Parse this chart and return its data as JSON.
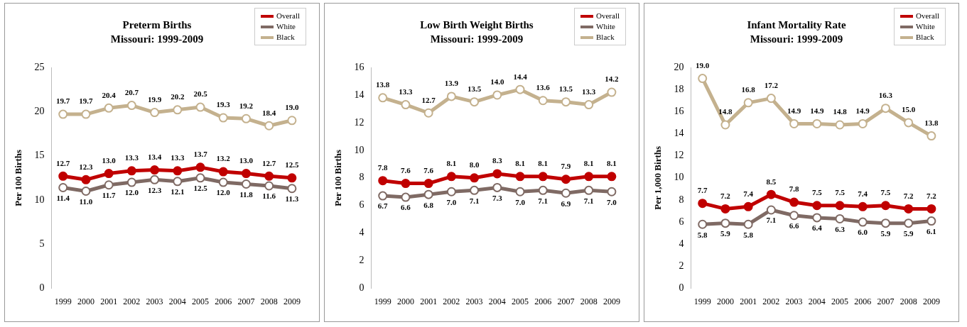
{
  "chart_data": [
    {
      "type": "line",
      "title": "Preterm Births",
      "subtitle": "Missouri: 1999-2009",
      "ylabel": "Per 100 Births",
      "categories": [
        "1999",
        "2000",
        "2001",
        "2002",
        "2003",
        "2004",
        "2005",
        "2006",
        "2007",
        "2008",
        "2009"
      ],
      "ylim": [
        0,
        25
      ],
      "yticks": [
        0,
        5,
        10,
        15,
        20,
        25
      ],
      "grid": false,
      "legend": "top right",
      "marker": "circle",
      "series": [
        {
          "name": "Overall",
          "color": "#c00000",
          "values": [
            12.7,
            12.3,
            13.0,
            13.3,
            13.4,
            13.3,
            13.7,
            13.2,
            13.0,
            12.7,
            12.5
          ],
          "value_labels": [
            "12.7",
            "12.3",
            "13.0",
            "13.3",
            "13.4",
            "13.3",
            "13.7",
            "13.2",
            "13.0",
            "12.7",
            "12.5"
          ]
        },
        {
          "name": "White",
          "color": "#7f6a64",
          "values": [
            11.4,
            11.0,
            11.7,
            12.0,
            12.3,
            12.1,
            12.5,
            12.0,
            11.8,
            11.6,
            11.3
          ],
          "value_labels": [
            "11.4",
            "11.0",
            "11.7",
            "12.0",
            "12.3",
            "12.1",
            "12.5",
            "12.0",
            "11.8",
            "11.6",
            "11.3"
          ]
        },
        {
          "name": "Black",
          "color": "#c4b18e",
          "values": [
            19.7,
            19.7,
            20.4,
            20.7,
            19.9,
            20.2,
            20.5,
            19.3,
            19.2,
            18.4,
            19.0
          ],
          "value_labels": [
            "19.7",
            "19.7",
            "20.4",
            "20.7",
            "19.9",
            "20.2",
            "20.5",
            "19.3",
            "19.2",
            "18.4",
            "19.0"
          ]
        }
      ]
    },
    {
      "type": "line",
      "title": "Low Birth Weight Births",
      "subtitle": "Missouri: 1999-2009",
      "ylabel": "Per 100 Births",
      "categories": [
        "1999",
        "2000",
        "2001",
        "2002",
        "2003",
        "2004",
        "2005",
        "2006",
        "2007",
        "2008",
        "2009"
      ],
      "ylim": [
        0,
        16
      ],
      "yticks": [
        0,
        2,
        4,
        6,
        8,
        10,
        12,
        14,
        16
      ],
      "grid": false,
      "legend": "top right",
      "marker": "circle",
      "series": [
        {
          "name": "Overall",
          "color": "#c00000",
          "values": [
            7.8,
            7.6,
            7.6,
            8.1,
            8.0,
            8.3,
            8.1,
            8.1,
            7.9,
            8.1,
            8.1
          ],
          "value_labels": [
            "7.8",
            "7.6",
            "7.6",
            "8.1",
            "8.0",
            "8.3",
            "8.1",
            "8.1",
            "7.9",
            "8.1",
            "8.1"
          ]
        },
        {
          "name": "White",
          "color": "#7f6a64",
          "values": [
            6.7,
            6.6,
            6.8,
            7.0,
            7.1,
            7.3,
            7.0,
            7.1,
            6.9,
            7.1,
            7.0
          ],
          "value_labels": [
            "6.7",
            "6.6",
            "6.8",
            "7.0",
            "7.1",
            "7.3",
            "7.0",
            "7.1",
            "6.9",
            "7.1",
            "7.0"
          ]
        },
        {
          "name": "Black",
          "color": "#c4b18e",
          "values": [
            13.8,
            13.3,
            12.7,
            13.9,
            13.5,
            14.0,
            14.4,
            13.6,
            13.5,
            13.3,
            14.2
          ],
          "value_labels": [
            "13.8",
            "13.3",
            "12.7",
            "13.9",
            "13.5",
            "14.0",
            "14.4",
            "13.6",
            "13.5",
            "13.3",
            "14.2"
          ]
        }
      ]
    },
    {
      "type": "line",
      "title": "Infant Mortality Rate",
      "subtitle": "Missouri: 1999-2009",
      "ylabel": "Per 1,000 Births",
      "categories": [
        "1999",
        "2000",
        "2001",
        "2002",
        "2003",
        "2004",
        "2005",
        "2006",
        "2007",
        "2008",
        "2009"
      ],
      "ylim": [
        0,
        20
      ],
      "yticks": [
        0,
        2,
        4,
        6,
        8,
        10,
        12,
        14,
        16,
        18,
        20
      ],
      "grid": false,
      "legend": "top right",
      "marker": "circle",
      "series": [
        {
          "name": "Overall",
          "color": "#c00000",
          "values": [
            7.7,
            7.2,
            7.4,
            8.5,
            7.8,
            7.5,
            7.5,
            7.4,
            7.5,
            7.2,
            7.2
          ],
          "value_labels": [
            "7.7",
            "7.2",
            "7.4",
            "8.5",
            "7.8",
            "7.5",
            "7.5",
            "7.4",
            "7.5",
            "7.2",
            "7.2"
          ]
        },
        {
          "name": "White",
          "color": "#7f6a64",
          "values": [
            5.8,
            5.9,
            5.8,
            7.1,
            6.6,
            6.4,
            6.3,
            6.0,
            5.9,
            5.9,
            6.1
          ],
          "value_labels": [
            "5.8",
            "5.9",
            "5.8",
            "7.1",
            "6.6",
            "6.4",
            "6.3",
            "6.0",
            "5.9",
            "5.9",
            "6.1"
          ]
        },
        {
          "name": "Black",
          "color": "#c4b18e",
          "values": [
            19.0,
            14.8,
            16.8,
            17.2,
            14.9,
            14.9,
            14.8,
            14.9,
            16.3,
            15.0,
            13.8
          ],
          "value_labels": [
            "19.0",
            "14.8",
            "16.8",
            "17.2",
            "14.9",
            "14.9",
            "14.8",
            "14.9",
            "16.3",
            "15.0",
            "13.8"
          ]
        }
      ]
    }
  ]
}
